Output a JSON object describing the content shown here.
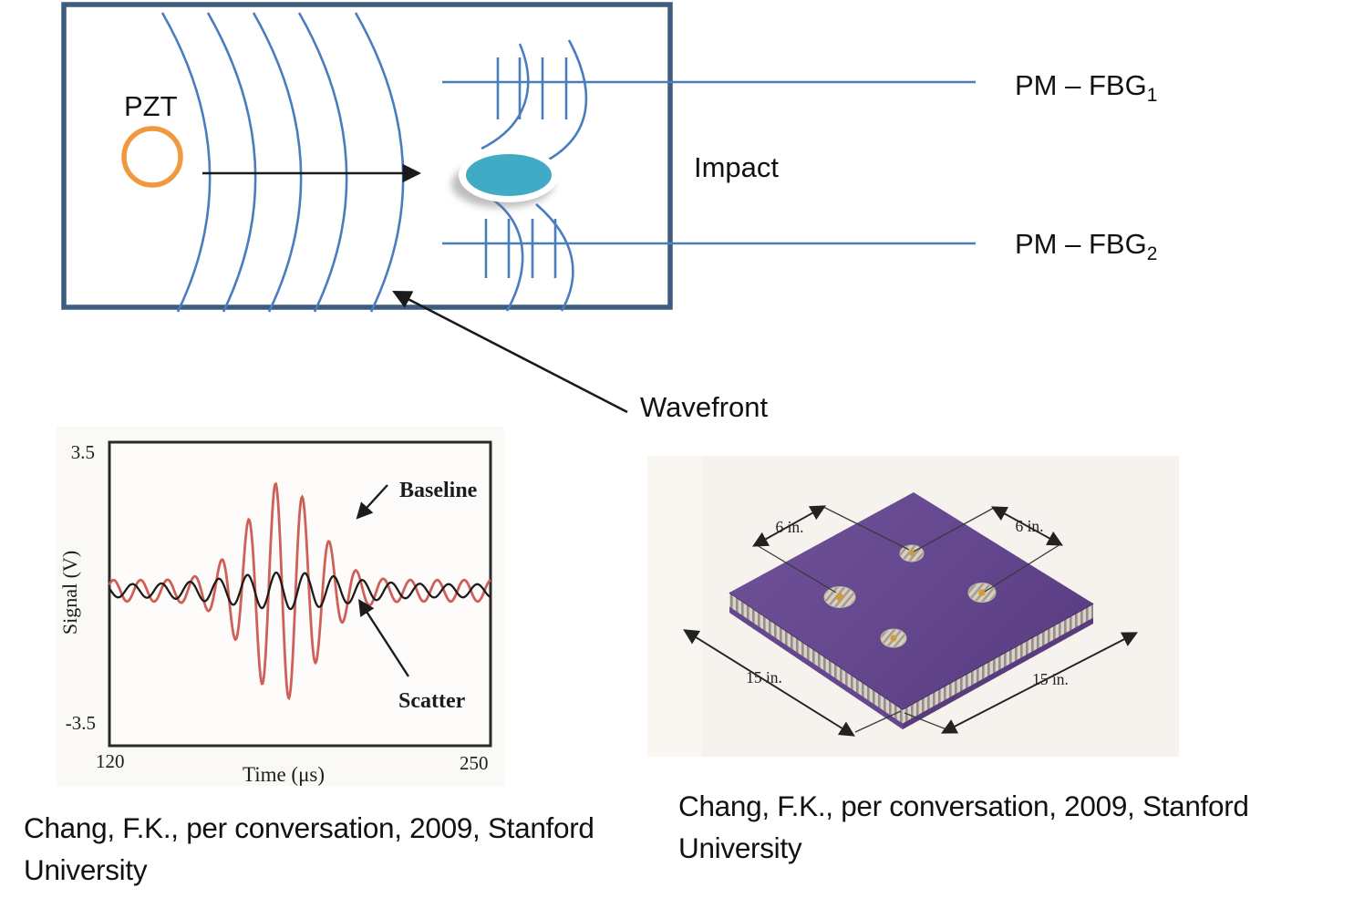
{
  "diagram": {
    "pzt_label": "PZT",
    "impact_label": "Impact",
    "wavefront_label": "Wavefront",
    "sensor1": {
      "label": "PM – FBG",
      "sub": "1"
    },
    "sensor2": {
      "label": "PM – FBG",
      "sub": "2"
    },
    "colors": {
      "box_border": "#3d5c80",
      "wave_blue": "#4a7dbd",
      "pzt_orange": "#f0993f",
      "impact_teal": "#41abc5",
      "arrow_black": "#1a1a1a"
    }
  },
  "chart_data": {
    "type": "line",
    "title": "",
    "xlabel": "Time (μs)",
    "ylabel": "Signal (V)",
    "xlim": [
      120,
      250
    ],
    "ylim": [
      -3.5,
      3.5
    ],
    "grid": false,
    "x_tick_labels": [
      "120",
      "250"
    ],
    "y_tick_labels": [
      "3.5",
      "-3.5"
    ],
    "legend_position": "annotated-arrows",
    "series": [
      {
        "name": "Baseline",
        "color": "#cf6058",
        "waveform": "tone_burst",
        "carrier_period_us": 9.2,
        "phase_rad": 0.6,
        "base_amplitude_v": 0.28,
        "peak_amplitude_v": 2.85,
        "envelope_center_us": 179,
        "envelope_sigma_us": 16.5
      },
      {
        "name": "Scatter",
        "color": "#1c1c1c",
        "waveform": "tone_burst",
        "carrier_period_us": 9.8,
        "phase_rad": 2.8,
        "base_amplitude_v": 0.17,
        "peak_amplitude_v": 0.48,
        "envelope_center_us": 180,
        "envelope_sigma_us": 26
      }
    ],
    "annotations": [
      {
        "label": "Baseline",
        "points_to": "red waveform peak"
      },
      {
        "label": "Scatter",
        "points_to": "black waveform"
      }
    ]
  },
  "panel_figure": {
    "dim_top_left": "6 in.",
    "dim_top_right": "6 in.",
    "dim_bottom_left": "15 in.",
    "dim_bottom_right": "15 in.",
    "colors": {
      "panel_purple": "#6a4c92",
      "panel_purple_dark": "#5e4084",
      "honeycomb": "#d8d1c9",
      "photo_bg": "#f6f3ee"
    }
  },
  "citations": {
    "left": "Chang, F.K., per conversation, 2009, Stanford University",
    "right": "Chang, F.K., per conversation, 2009, Stanford University"
  }
}
